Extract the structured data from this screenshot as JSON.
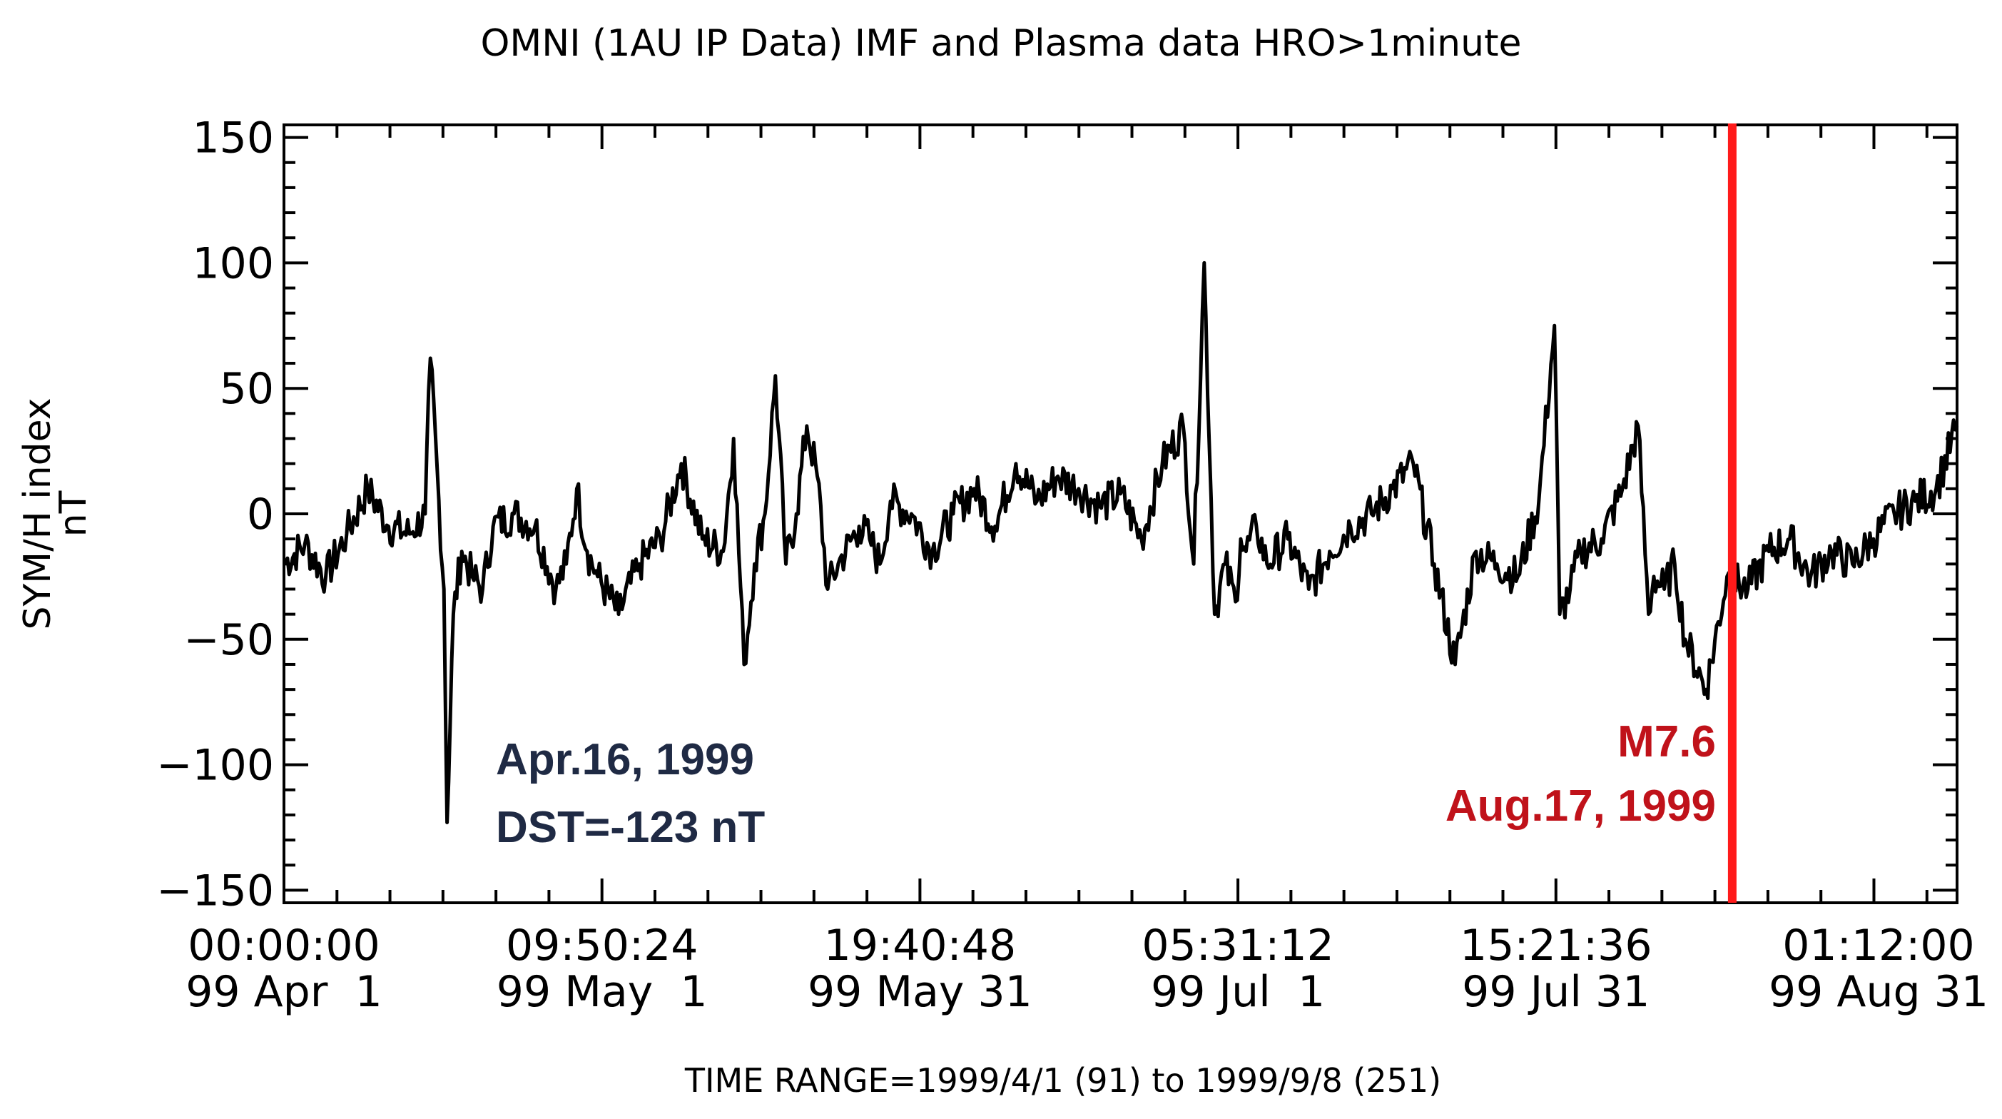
{
  "title": "OMNI (1AU IP Data)  IMF and Plasma data  HRO>1minute",
  "footer": "TIME RANGE=1999/4/1 (91) to 1999/9/8 (251)",
  "colors": {
    "line": "#000000",
    "event": "#ff1a1a",
    "storm_text": "#1f2a44",
    "event_text": "#c0121a"
  },
  "chart_data": {
    "type": "line",
    "title": "OMNI (1AU IP Data)  IMF and Plasma data  HRO>1minute",
    "ylabel_line1": "SYM/H index",
    "ylabel_line2": "nT",
    "xlabel": "TIME RANGE=1999/4/1 (91) to 1999/9/8 (251)",
    "ylim": [
      -155,
      155
    ],
    "xlim_days": [
      0,
      160
    ],
    "y_ticks": [
      150,
      100,
      50,
      0,
      -50,
      -100,
      -150
    ],
    "y_tick_labels": [
      "150",
      "100",
      "50",
      "0",
      "−50",
      "−100",
      "−150"
    ],
    "x_ticks_days": [
      0,
      30.41,
      60.82,
      91.23,
      121.64,
      152.05
    ],
    "x_tick_labels": [
      [
        "00:00:00",
        "99 Apr  1"
      ],
      [
        "09:50:24",
        "99 May  1"
      ],
      [
        "19:40:48",
        "99 May 31"
      ],
      [
        "05:31:12",
        "99 Jul  1"
      ],
      [
        "15:21:36",
        "99 Jul 31"
      ],
      [
        "01:12:00",
        "99 Aug 31"
      ]
    ],
    "series": [
      {
        "x": [
          0,
          2,
          4,
          6,
          8,
          10,
          12,
          13.5,
          14,
          15.3,
          15.6,
          16.2,
          17,
          18,
          19,
          20,
          22,
          24,
          26,
          27,
          28,
          29,
          30,
          32,
          34,
          36,
          38,
          40,
          42,
          43,
          44,
          45,
          46,
          47,
          48,
          49,
          50,
          51,
          52,
          53,
          55,
          56,
          57,
          58,
          60,
          62,
          64,
          66,
          68,
          70,
          72,
          74,
          76,
          78,
          80,
          82,
          84,
          86,
          87,
          88,
          89,
          90,
          91,
          91.5,
          92,
          93,
          94,
          96,
          98,
          100,
          102,
          104,
          106,
          108,
          110,
          112,
          114,
          116,
          118,
          120,
          121.5,
          122,
          123,
          124,
          126,
          128,
          129.5,
          130.5,
          131,
          132,
          133,
          134,
          136,
          138,
          140,
          142,
          144,
          146,
          148,
          150,
          152,
          154,
          156,
          158,
          160
        ],
        "y": [
          -20,
          -12,
          -25,
          -8,
          10,
          -5,
          -8,
          0,
          62,
          -30,
          -123,
          -40,
          -15,
          -25,
          -30,
          -5,
          0,
          -5,
          -30,
          -20,
          10,
          -15,
          -25,
          -40,
          -20,
          -10,
          20,
          -10,
          -15,
          30,
          -60,
          -20,
          0,
          55,
          -20,
          0,
          35,
          15,
          -30,
          -20,
          -5,
          -10,
          -20,
          5,
          0,
          -15,
          0,
          10,
          -5,
          20,
          5,
          15,
          10,
          3,
          8,
          -10,
          20,
          35,
          -20,
          100,
          -40,
          -20,
          -35,
          -10,
          -15,
          -5,
          -20,
          -10,
          -30,
          -15,
          -5,
          0,
          10,
          20,
          -20,
          -60,
          -15,
          -20,
          -25,
          5,
          75,
          -40,
          -30,
          -15,
          -10,
          10,
          35,
          -40,
          -25,
          -30,
          -20,
          -50,
          -70,
          -25,
          -30,
          -15,
          -10,
          -25,
          -15,
          -20,
          -10,
          0,
          5,
          10,
          35
        ]
      }
    ],
    "event_line_day": 138.5,
    "annotations": {
      "storm_line1": "Apr.16, 1999",
      "storm_line2": "DST=-123 nT",
      "event_line1": "M7.6",
      "event_line2": "Aug.17, 1999"
    }
  }
}
